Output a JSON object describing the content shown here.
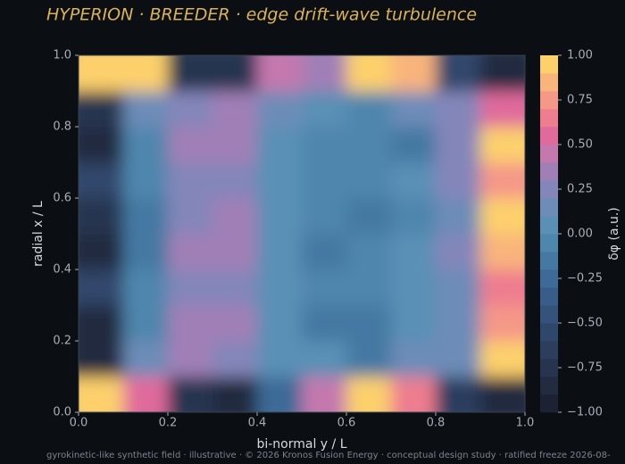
{
  "chart_data": {
    "type": "contour",
    "title": "HYPERION · BREEDER  ·  edge drift-wave turbulence",
    "footer": "gyrokinetic-like synthetic field · illustrative · © 2026 Kronos Fusion Energy · conceptual design study · ratified freeze 2026-08-",
    "xlabel": "bi-normal  y / L",
    "ylabel": "radial  x / L",
    "colorbar_label": "δφ (a.u.)",
    "x": [
      0.05,
      0.15,
      0.25,
      0.35,
      0.45,
      0.55,
      0.65,
      0.75,
      0.85,
      0.95
    ],
    "y": [
      0.05,
      0.15,
      0.25,
      0.35,
      0.45,
      0.55,
      0.65,
      0.75,
      0.85,
      0.95
    ],
    "z": [
      [
        1,
        0.5,
        -0.8,
        -0.9,
        -0.3,
        0.4,
        0.9,
        0.6,
        -0.7,
        -0.9
      ],
      [
        -0.9,
        0.1,
        0.35,
        0.2,
        0.05,
        0,
        -0.15,
        0.1,
        0.1,
        0.9
      ],
      [
        -0.9,
        -0.05,
        0.35,
        0.3,
        0.05,
        -0.15,
        -0.15,
        0,
        0.1,
        0.75
      ],
      [
        -0.55,
        -0.1,
        0.2,
        0.25,
        0.05,
        -0.1,
        -0.1,
        0,
        0.15,
        0.65
      ],
      [
        -0.9,
        -0.2,
        0.3,
        0.3,
        0.05,
        -0.2,
        -0.1,
        0.05,
        0.2,
        0.85
      ],
      [
        -0.8,
        -0.2,
        0.25,
        0.3,
        0.05,
        -0.1,
        -0.2,
        -0.1,
        0.15,
        0.9
      ],
      [
        -0.6,
        -0.1,
        0.2,
        0.2,
        0.05,
        -0.05,
        -0.1,
        0,
        0.2,
        0.7
      ],
      [
        -0.9,
        -0.1,
        0.3,
        0.35,
        0.05,
        -0.05,
        -0.1,
        -0.15,
        0.25,
        0.9
      ],
      [
        -0.8,
        0.1,
        0.25,
        0.3,
        0.1,
        0,
        -0.05,
        0.1,
        0.2,
        0.5
      ],
      [
        0.95,
        0.9,
        -0.8,
        -0.8,
        0.4,
        0.3,
        1,
        0.8,
        -0.6,
        -0.85
      ]
    ],
    "levels": [
      -1,
      -0.9,
      -0.8,
      -0.7,
      -0.6,
      -0.5,
      -0.4,
      -0.3,
      -0.2,
      -0.1,
      0,
      0.1,
      0.2,
      0.3,
      0.4,
      0.5,
      0.6,
      0.7,
      0.8,
      0.9,
      1
    ],
    "level_colors": [
      "#1c2233",
      "#222b40",
      "#27344f",
      "#2c3d5e",
      "#30476c",
      "#34527c",
      "#385d8b",
      "#3d6a98",
      "#4579a3",
      "#4f86ad",
      "#5a90b5",
      "#6d8cb8",
      "#8486ba",
      "#a07fb6",
      "#c478ae",
      "#e06a9c",
      "#ee7d8f",
      "#f59888",
      "#f9b47c",
      "#fdd06c"
    ],
    "xlim": [
      0,
      1
    ],
    "ylim": [
      0,
      1
    ],
    "clim": [
      -1,
      1
    ],
    "xticks": [
      {
        "value": 0,
        "label": "0.0"
      },
      {
        "value": 0.2,
        "label": "0.2"
      },
      {
        "value": 0.4,
        "label": "0.4"
      },
      {
        "value": 0.6,
        "label": "0.6"
      },
      {
        "value": 0.8,
        "label": "0.8"
      },
      {
        "value": 1,
        "label": "1.0"
      }
    ],
    "yticks": [
      {
        "value": 0,
        "label": "0.0"
      },
      {
        "value": 0.2,
        "label": "0.2"
      },
      {
        "value": 0.4,
        "label": "0.4"
      },
      {
        "value": 0.6,
        "label": "0.6"
      },
      {
        "value": 0.8,
        "label": "0.8"
      },
      {
        "value": 1,
        "label": "1.0"
      }
    ],
    "cticks": [
      {
        "value": -1,
        "label": "−1.00"
      },
      {
        "value": -0.75,
        "label": "−0.75"
      },
      {
        "value": -0.5,
        "label": "−0.50"
      },
      {
        "value": -0.25,
        "label": "−0.25"
      },
      {
        "value": 0,
        "label": "0.00"
      },
      {
        "value": 0.25,
        "label": "0.25"
      },
      {
        "value": 0.5,
        "label": "0.50"
      },
      {
        "value": 0.75,
        "label": "0.75"
      },
      {
        "value": 1,
        "label": "1.00"
      }
    ]
  }
}
